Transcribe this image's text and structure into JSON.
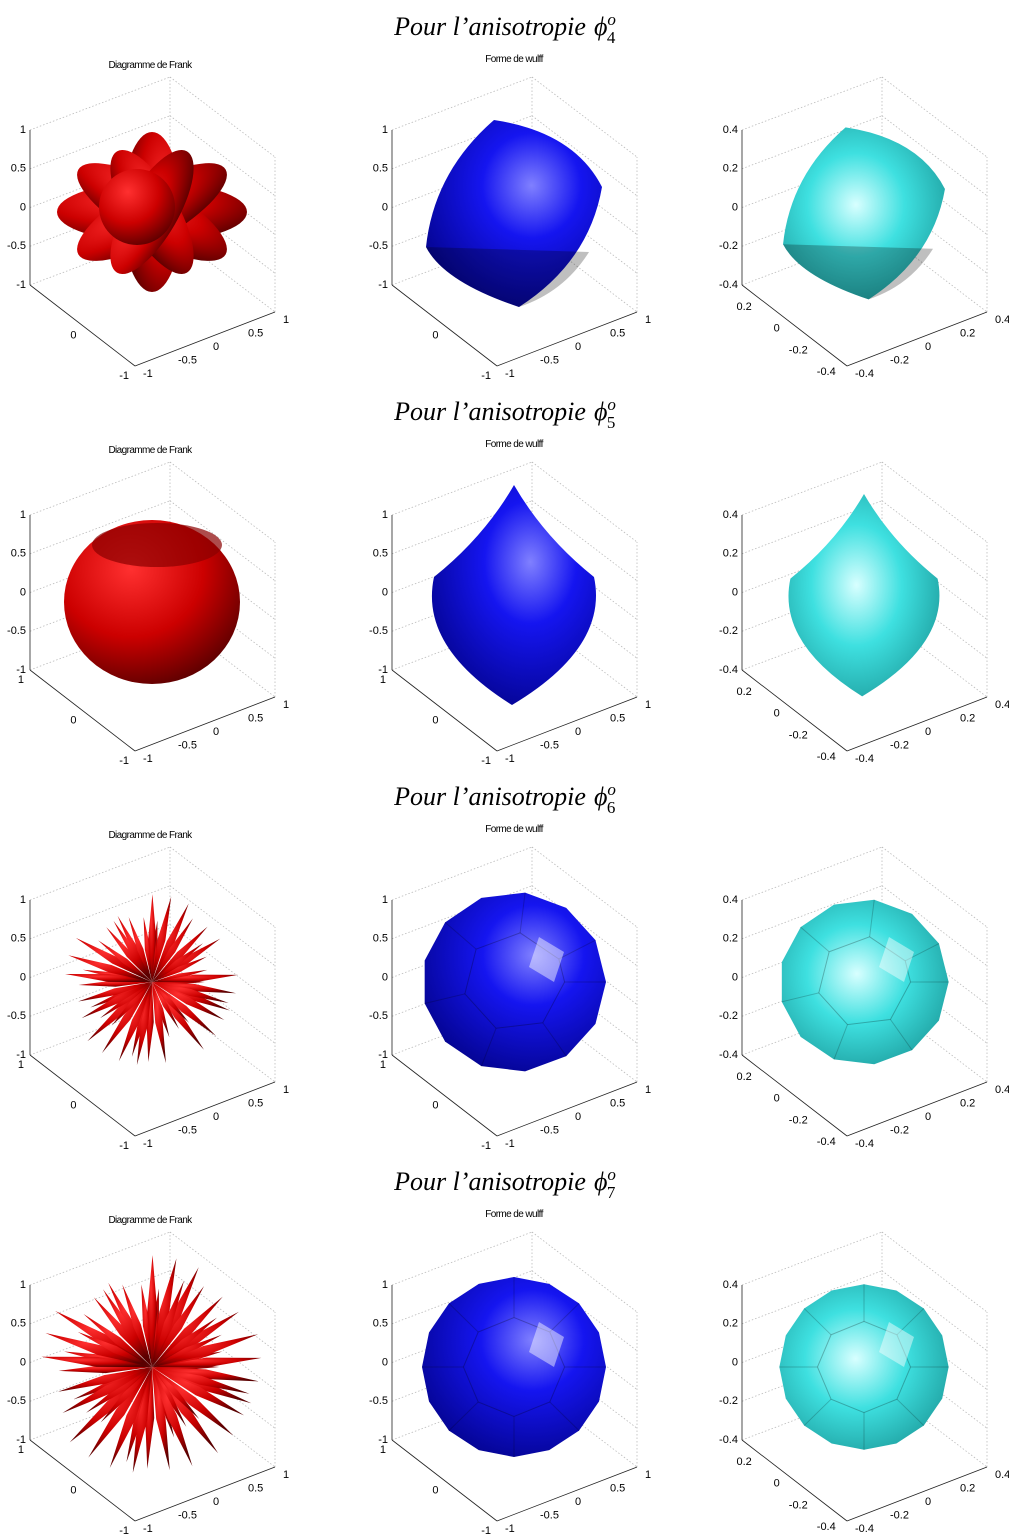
{
  "sections": [
    {
      "heading": {
        "text": "Pour l’anisotropie",
        "symbol": "ϕ",
        "subscript": "4",
        "superscript": "o"
      },
      "panels": [
        {
          "title": "Diagramme de Frank",
          "z_ticks": [
            "1",
            "0.5",
            "0",
            "-0.5",
            "-1"
          ],
          "left_ticks": [
            null,
            "0",
            "-1"
          ],
          "right_ticks": [
            "-1",
            "-0.5",
            "0",
            "0.5",
            "1"
          ]
        },
        {
          "title": "Forme de wulff",
          "z_ticks": [
            "1",
            "0.5",
            "0",
            "-0.5",
            "-1"
          ],
          "left_ticks": [
            null,
            "0",
            "-1"
          ],
          "right_ticks": [
            "-1",
            "-0.5",
            "0",
            "0.5",
            "1"
          ]
        },
        {
          "z_ticks": [
            "0.4",
            "0.2",
            "0",
            "-0.2",
            "-0.4"
          ],
          "left_ticks": [
            "0.2",
            "0",
            "-0.2",
            "-0.4"
          ],
          "right_ticks": [
            "-0.4",
            "-0.2",
            "0",
            "0.2",
            "0.4"
          ]
        }
      ]
    },
    {
      "heading": {
        "text": "Pour l’anisotropie",
        "symbol": "ϕ",
        "subscript": "5",
        "superscript": "o"
      },
      "panels": [
        {
          "title": "Diagramme de Frank",
          "z_ticks": [
            "1",
            "0.5",
            "0",
            "-0.5",
            "-1"
          ],
          "left_ticks": [
            "1",
            "0",
            "-1"
          ],
          "right_ticks": [
            "-1",
            "-0.5",
            "0",
            "0.5",
            "1"
          ]
        },
        {
          "title": "Forme de wulff",
          "z_ticks": [
            "1",
            "0.5",
            "0",
            "-0.5",
            "-1"
          ],
          "left_ticks": [
            "1",
            "0",
            "-1"
          ],
          "right_ticks": [
            "-1",
            "-0.5",
            "0",
            "0.5",
            "1"
          ]
        },
        {
          "z_ticks": [
            "0.4",
            "0.2",
            "0",
            "-0.2",
            "-0.4"
          ],
          "left_ticks": [
            "0.2",
            "0",
            "-0.2",
            "-0.4"
          ],
          "right_ticks": [
            "-0.4",
            "-0.2",
            "0",
            "0.2",
            "0.4"
          ]
        }
      ]
    },
    {
      "heading": {
        "text": "Pour l’anisotropie",
        "symbol": "ϕ",
        "subscript": "6",
        "superscript": "o"
      },
      "panels": [
        {
          "title": "Diagramme de Frank",
          "z_ticks": [
            "1",
            "0.5",
            "0",
            "-0.5",
            "-1"
          ],
          "left_ticks": [
            "1",
            "0",
            "-1"
          ],
          "right_ticks": [
            "-1",
            "-0.5",
            "0",
            "0.5",
            "1"
          ]
        },
        {
          "title": "Forme de wulff",
          "z_ticks": [
            "1",
            "0.5",
            "0",
            "-0.5",
            "-1"
          ],
          "left_ticks": [
            "1",
            "0",
            "-1"
          ],
          "right_ticks": [
            "-1",
            "-0.5",
            "0",
            "0.5",
            "1"
          ]
        },
        {
          "z_ticks": [
            "0.4",
            "0.2",
            "0",
            "-0.2",
            "-0.4"
          ],
          "left_ticks": [
            "0.2",
            "0",
            "-0.2",
            "-0.4"
          ],
          "right_ticks": [
            "-0.4",
            "-0.2",
            "0",
            "0.2",
            "0.4"
          ]
        }
      ]
    },
    {
      "heading": {
        "text": "Pour l’anisotropie",
        "symbol": "ϕ",
        "subscript": "7",
        "superscript": "o"
      },
      "panels": [
        {
          "title": "Diagramme de Frank",
          "z_ticks": [
            "1",
            "0.5",
            "0",
            "-0.5",
            "-1"
          ],
          "left_ticks": [
            "1",
            "0",
            "-1"
          ],
          "right_ticks": [
            "-1",
            "-0.5",
            "0",
            "0.5",
            "1"
          ]
        },
        {
          "title": "Forme de wulff",
          "z_ticks": [
            "1",
            "0.5",
            "0",
            "-0.5",
            "-1"
          ],
          "left_ticks": [
            "1",
            "0",
            "-1"
          ],
          "right_ticks": [
            "-1",
            "-0.5",
            "0",
            "0.5",
            "1"
          ]
        },
        {
          "z_ticks": [
            "0.4",
            "0.2",
            "0",
            "-0.2",
            "-0.4"
          ],
          "left_ticks": [
            "0.2",
            "0",
            "-0.2",
            "-0.4"
          ],
          "right_ticks": [
            "-0.4",
            "-0.2",
            "0",
            "0.2",
            "0.4"
          ]
        }
      ]
    }
  ]
}
